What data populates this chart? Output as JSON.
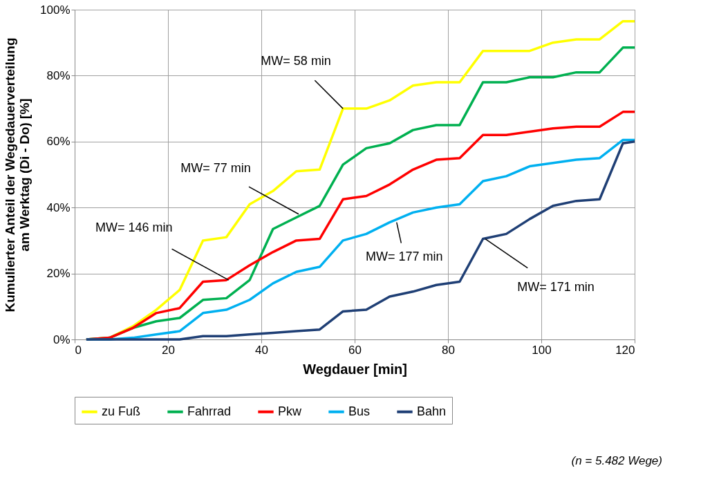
{
  "chart_data": {
    "type": "line",
    "xlabel": "Wegdauer [min]",
    "ylabel": "Kumulierter Anteil der Wegedauerverteilung\nam Werktag (Di - Do) [%]",
    "x": [
      2.5,
      7.5,
      12.5,
      17.5,
      22.5,
      27.5,
      32.5,
      37.5,
      42.5,
      47.5,
      52.5,
      57.5,
      62.5,
      67.5,
      72.5,
      77.5,
      82.5,
      87.5,
      92.5,
      97.5,
      102.5,
      107.5,
      112.5,
      117.5,
      120
    ],
    "series": [
      {
        "name": "zu Fuß",
        "color": "#ffff00",
        "values": [
          0,
          0.5,
          4,
          9,
          15,
          30,
          31,
          41,
          45,
          51,
          51.5,
          70,
          70,
          72.5,
          77,
          78,
          78,
          87.5,
          87.5,
          87.5,
          90,
          91,
          91,
          96.5,
          96.5
        ]
      },
      {
        "name": "Fahrrad",
        "color": "#00b050",
        "values": [
          0,
          0.5,
          3.5,
          5.5,
          6.5,
          12,
          12.5,
          18,
          33.5,
          37,
          40.5,
          53,
          58,
          59.5,
          63.5,
          65,
          65,
          78,
          78,
          79.5,
          79.5,
          81,
          81,
          88.5,
          88.5
        ]
      },
      {
        "name": "Pkw",
        "color": "#ff0000",
        "values": [
          0,
          0.5,
          3.5,
          8,
          9.5,
          17.5,
          18,
          22.5,
          26.5,
          30,
          30.5,
          42.5,
          43.5,
          47,
          51.5,
          54.5,
          55,
          62,
          62,
          63,
          64,
          64.5,
          64.5,
          69,
          69
        ]
      },
      {
        "name": "Bus",
        "color": "#00b0f0",
        "values": [
          0,
          0,
          0.5,
          1.5,
          2.5,
          8,
          9,
          12,
          17,
          20.5,
          22,
          30,
          32,
          35.5,
          38.5,
          40,
          41,
          48,
          49.5,
          52.5,
          53.5,
          54.5,
          55,
          60.5,
          60.5
        ]
      },
      {
        "name": "Bahn",
        "color": "#1f3f75",
        "values": [
          0,
          0,
          0,
          0,
          0,
          1,
          1,
          1.5,
          2,
          2.5,
          3,
          8.5,
          9,
          13,
          14.5,
          16.5,
          17.5,
          30.5,
          32,
          36.5,
          40.5,
          42,
          42.5,
          59.5,
          60
        ]
      }
    ],
    "xlim": [
      0,
      120
    ],
    "xticks": [
      0,
      20,
      40,
      60,
      80,
      100,
      120
    ],
    "ylim": [
      0,
      100
    ],
    "yticks": [
      {
        "value": 0,
        "label": "0%"
      },
      {
        "value": 20,
        "label": "20%"
      },
      {
        "value": 40,
        "label": "40%"
      },
      {
        "value": 60,
        "label": "60%"
      },
      {
        "value": 80,
        "label": "80%"
      },
      {
        "value": 100,
        "label": "100%"
      }
    ],
    "annotations": [
      {
        "text": "MW= 58 min",
        "x": 57.5,
        "y": 70
      },
      {
        "text": "MW= 77 min",
        "x": 48,
        "y": 38
      },
      {
        "text": "MW= 146 min",
        "x": 33,
        "y": 18
      },
      {
        "text": "MW= 177 min",
        "x": 69,
        "y": 35.5
      },
      {
        "text": "MW= 171 min",
        "x": 88,
        "y": 30.5
      },
      "(n = 5.482 Wege)"
    ],
    "grid": true,
    "legend": "bottom",
    "marker": "none",
    "line_style": "solid"
  }
}
